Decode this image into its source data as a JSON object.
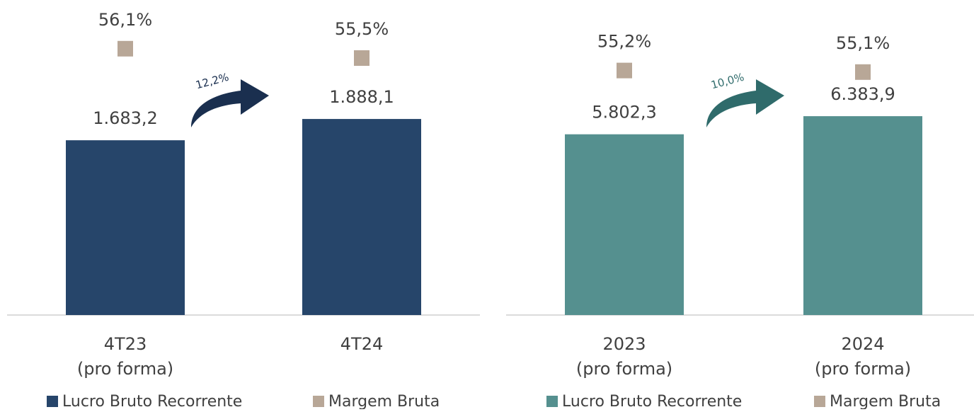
{
  "chart_data": [
    {
      "type": "bar",
      "categories": [
        "4T23\n(pro forma)",
        "4T24"
      ],
      "series": [
        {
          "name": "Lucro Bruto Recorrente",
          "color": "#26456a",
          "values": [
            1683.2,
            1888.1
          ],
          "value_labels": [
            "1.683,2",
            "1.888,1"
          ]
        },
        {
          "name": "Margem Bruta",
          "color": "#b8a797",
          "axis": "y2",
          "values": [
            56.1,
            55.5
          ],
          "value_labels": [
            "56,1%",
            "55,5%"
          ]
        }
      ],
      "annotation": "12,2%",
      "annotation_color": "#1a2f4f",
      "ylim": [
        0,
        3000
      ],
      "y2lim": [
        39,
        59
      ],
      "legend": "bottom"
    },
    {
      "type": "bar",
      "categories": [
        "2023\n(pro forma)",
        "2024\n(pro forma)"
      ],
      "series": [
        {
          "name": "Lucro Bruto Recorrente",
          "color": "#55908f",
          "values": [
            5802.3,
            6383.9
          ],
          "value_labels": [
            "5.802,3",
            "6.383,9"
          ]
        },
        {
          "name": "Margem Bruta",
          "color": "#b8a797",
          "axis": "y2",
          "values": [
            55.2,
            55.1
          ],
          "value_labels": [
            "55,2%",
            "55,1%"
          ]
        }
      ],
      "annotation": "10,0%",
      "annotation_color": "#2f6b6b",
      "ylim": [
        0,
        10000
      ],
      "y2lim": [
        39.5,
        59.5
      ],
      "legend": "bottom"
    }
  ]
}
